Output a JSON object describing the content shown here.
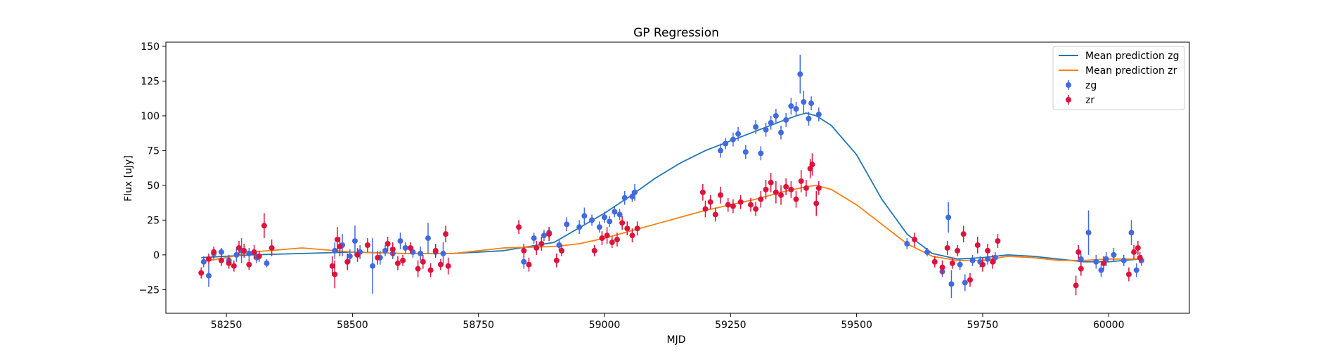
{
  "chart_data": {
    "type": "scatter",
    "title": "GP Regression",
    "xlabel": "MJD",
    "ylabel": "Flux [uJy]",
    "xlim": [
      58130,
      60160
    ],
    "ylim": [
      -42,
      153
    ],
    "xticks": [
      58250,
      58500,
      58750,
      59000,
      59250,
      59500,
      59750,
      60000
    ],
    "yticks": [
      -25,
      0,
      25,
      50,
      75,
      100,
      125,
      150
    ],
    "grid": false,
    "legend_position": "top-right",
    "legend": [
      "Mean prediction zg",
      "Mean prediction zr",
      "zg",
      "zr"
    ],
    "colors": {
      "mean_zg": "#1f77b4",
      "mean_zr": "#ff7f0e",
      "zg": "#4169e1",
      "zr": "#dc143c"
    },
    "series": [
      {
        "name": "Mean prediction zg",
        "kind": "line",
        "color": "#1f77b4",
        "x": [
          58200,
          58300,
          58400,
          58500,
          58600,
          58700,
          58800,
          58900,
          59000,
          59050,
          59100,
          59150,
          59200,
          59250,
          59300,
          59350,
          59380,
          59400,
          59420,
          59450,
          59500,
          59550,
          59600,
          59650,
          59700,
          59750,
          59800,
          59850,
          59900,
          59950,
          60000,
          60060
        ],
        "y": [
          -2,
          0,
          1,
          2,
          1,
          1,
          3,
          9,
          30,
          42,
          55,
          66,
          75,
          82,
          89,
          96,
          100,
          102,
          100,
          93,
          72,
          40,
          15,
          1,
          -3,
          -2,
          0,
          -1,
          -3,
          -5,
          -5,
          -3
        ]
      },
      {
        "name": "Mean prediction zr",
        "kind": "line",
        "color": "#ff7f0e",
        "x": [
          58200,
          58250,
          58300,
          58400,
          58500,
          58600,
          58700,
          58800,
          58900,
          58950,
          59000,
          59050,
          59100,
          59150,
          59200,
          59250,
          59300,
          59350,
          59400,
          59420,
          59450,
          59500,
          59550,
          59600,
          59650,
          59700,
          59750,
          59800,
          59850,
          59900,
          59950,
          60000,
          60060
        ],
        "y": [
          -5,
          -2,
          2,
          5,
          2,
          1,
          1,
          5,
          6,
          8,
          12,
          17,
          22,
          27,
          32,
          36,
          40,
          45,
          49,
          50,
          47,
          36,
          22,
          8,
          -1,
          -4,
          -4,
          -1,
          -2,
          -4,
          -4,
          -3,
          -3
        ]
      },
      {
        "name": "zg",
        "kind": "errorbar",
        "color": "#4169e1",
        "points": [
          [
            58205,
            -5,
            4
          ],
          [
            58215,
            -15,
            8
          ],
          [
            58225,
            1,
            4
          ],
          [
            58240,
            2,
            3
          ],
          [
            58255,
            -4,
            4
          ],
          [
            58270,
            0,
            5
          ],
          [
            58280,
            3,
            9
          ],
          [
            58295,
            1,
            4
          ],
          [
            58310,
            -2,
            4
          ],
          [
            58330,
            -6,
            3
          ],
          [
            58465,
            3,
            6
          ],
          [
            58480,
            7,
            8
          ],
          [
            58495,
            -1,
            5
          ],
          [
            58505,
            10,
            11
          ],
          [
            58515,
            2,
            5
          ],
          [
            58540,
            -8,
            20
          ],
          [
            58555,
            -2,
            5
          ],
          [
            58565,
            3,
            4
          ],
          [
            58580,
            1,
            4
          ],
          [
            58595,
            10,
            6
          ],
          [
            58605,
            5,
            4
          ],
          [
            58620,
            2,
            4
          ],
          [
            58635,
            1,
            5
          ],
          [
            58650,
            12,
            11
          ],
          [
            58665,
            2,
            4
          ],
          [
            58680,
            1,
            8
          ],
          [
            58840,
            -5,
            5
          ],
          [
            58860,
            12,
            4
          ],
          [
            58880,
            14,
            4
          ],
          [
            58890,
            16,
            4
          ],
          [
            58910,
            7,
            4
          ],
          [
            58925,
            22,
            5
          ],
          [
            58950,
            20,
            5
          ],
          [
            58960,
            28,
            6
          ],
          [
            58975,
            25,
            4
          ],
          [
            58990,
            20,
            4
          ],
          [
            59000,
            27,
            4
          ],
          [
            59010,
            24,
            4
          ],
          [
            59020,
            31,
            4
          ],
          [
            59030,
            29,
            4
          ],
          [
            59040,
            41,
            5
          ],
          [
            59055,
            42,
            4
          ],
          [
            59060,
            45,
            6
          ],
          [
            59230,
            75,
            5
          ],
          [
            59240,
            80,
            4
          ],
          [
            59255,
            83,
            5
          ],
          [
            59265,
            87,
            5
          ],
          [
            59280,
            74,
            5
          ],
          [
            59300,
            92,
            5
          ],
          [
            59310,
            73,
            5
          ],
          [
            59320,
            90,
            5
          ],
          [
            59330,
            95,
            5
          ],
          [
            59340,
            100,
            5
          ],
          [
            59350,
            88,
            5
          ],
          [
            59360,
            97,
            5
          ],
          [
            59370,
            107,
            6
          ],
          [
            59380,
            105,
            5
          ],
          [
            59388,
            130,
            14
          ],
          [
            59395,
            110,
            8
          ],
          [
            59405,
            98,
            5
          ],
          [
            59410,
            109,
            5
          ],
          [
            59425,
            101,
            5
          ],
          [
            59600,
            8,
            4
          ],
          [
            59640,
            2,
            3
          ],
          [
            59670,
            -12,
            4
          ],
          [
            59682,
            27,
            11
          ],
          [
            59688,
            -21,
            10
          ],
          [
            59705,
            -7,
            4
          ],
          [
            59715,
            -20,
            6
          ],
          [
            59730,
            -4,
            4
          ],
          [
            59745,
            -5,
            4
          ],
          [
            59760,
            -3,
            4
          ],
          [
            59775,
            -2,
            4
          ],
          [
            59945,
            -3,
            4
          ],
          [
            59960,
            16,
            16
          ],
          [
            59975,
            -5,
            5
          ],
          [
            59985,
            -11,
            5
          ],
          [
            59995,
            -3,
            5
          ],
          [
            60010,
            0,
            5
          ],
          [
            60030,
            -4,
            4
          ],
          [
            60045,
            16,
            9
          ],
          [
            60055,
            -11,
            5
          ],
          [
            60065,
            -4,
            4
          ]
        ]
      },
      {
        "name": "zr",
        "kind": "errorbar",
        "color": "#dc143c",
        "points": [
          [
            58200,
            -13,
            4
          ],
          [
            58215,
            -3,
            4
          ],
          [
            58225,
            2,
            4
          ],
          [
            58240,
            -4,
            4
          ],
          [
            58255,
            -6,
            4
          ],
          [
            58265,
            -8,
            4
          ],
          [
            58275,
            5,
            5
          ],
          [
            58285,
            3,
            5
          ],
          [
            58295,
            -7,
            4
          ],
          [
            58305,
            2,
            5
          ],
          [
            58315,
            -1,
            4
          ],
          [
            58325,
            21,
            9
          ],
          [
            58340,
            5,
            6
          ],
          [
            58460,
            -8,
            7
          ],
          [
            58465,
            -14,
            10
          ],
          [
            58470,
            11,
            9
          ],
          [
            58475,
            6,
            7
          ],
          [
            58490,
            -5,
            6
          ],
          [
            58510,
            0,
            5
          ],
          [
            58530,
            7,
            5
          ],
          [
            58550,
            -2,
            5
          ],
          [
            58570,
            8,
            5
          ],
          [
            58580,
            4,
            5
          ],
          [
            58590,
            -6,
            5
          ],
          [
            58600,
            -4,
            4
          ],
          [
            58615,
            5,
            4
          ],
          [
            58630,
            -10,
            6
          ],
          [
            58640,
            -5,
            5
          ],
          [
            58655,
            -11,
            5
          ],
          [
            58665,
            3,
            5
          ],
          [
            58675,
            -7,
            4
          ],
          [
            58685,
            15,
            6
          ],
          [
            58690,
            -8,
            6
          ],
          [
            58830,
            20,
            5
          ],
          [
            58840,
            3,
            5
          ],
          [
            58850,
            -7,
            5
          ],
          [
            58865,
            5,
            5
          ],
          [
            58875,
            8,
            5
          ],
          [
            58890,
            15,
            5
          ],
          [
            58905,
            -4,
            5
          ],
          [
            58915,
            3,
            4
          ],
          [
            58980,
            3,
            4
          ],
          [
            58995,
            12,
            5
          ],
          [
            59005,
            14,
            6
          ],
          [
            59015,
            9,
            4
          ],
          [
            59025,
            11,
            5
          ],
          [
            59035,
            23,
            5
          ],
          [
            59045,
            19,
            5
          ],
          [
            59055,
            14,
            5
          ],
          [
            59065,
            19,
            5
          ],
          [
            59195,
            45,
            6
          ],
          [
            59200,
            33,
            6
          ],
          [
            59210,
            38,
            5
          ],
          [
            59220,
            29,
            5
          ],
          [
            59230,
            43,
            6
          ],
          [
            59245,
            36,
            5
          ],
          [
            59255,
            35,
            5
          ],
          [
            59270,
            38,
            5
          ],
          [
            59290,
            36,
            5
          ],
          [
            59300,
            33,
            5
          ],
          [
            59310,
            40,
            6
          ],
          [
            59320,
            47,
            7
          ],
          [
            59330,
            52,
            7
          ],
          [
            59340,
            45,
            8
          ],
          [
            59350,
            43,
            7
          ],
          [
            59360,
            49,
            6
          ],
          [
            59370,
            47,
            6
          ],
          [
            59380,
            40,
            6
          ],
          [
            59390,
            53,
            8
          ],
          [
            59400,
            48,
            6
          ],
          [
            59408,
            62,
            7
          ],
          [
            59412,
            65,
            8
          ],
          [
            59420,
            37,
            9
          ],
          [
            59425,
            48,
            5
          ],
          [
            59615,
            11,
            5
          ],
          [
            59655,
            -5,
            4
          ],
          [
            59670,
            -9,
            5
          ],
          [
            59680,
            5,
            5
          ],
          [
            59690,
            -6,
            4
          ],
          [
            59700,
            3,
            4
          ],
          [
            59712,
            15,
            6
          ],
          [
            59725,
            -18,
            5
          ],
          [
            59740,
            7,
            6
          ],
          [
            59750,
            -7,
            5
          ],
          [
            59760,
            3,
            5
          ],
          [
            59770,
            -5,
            5
          ],
          [
            59780,
            10,
            5
          ],
          [
            59935,
            -22,
            7
          ],
          [
            59940,
            2,
            5
          ],
          [
            59945,
            -10,
            5
          ],
          [
            59990,
            -6,
            5
          ],
          [
            60040,
            -14,
            5
          ],
          [
            60050,
            2,
            5
          ],
          [
            60058,
            5,
            5
          ],
          [
            60062,
            -2,
            4
          ]
        ]
      }
    ]
  }
}
